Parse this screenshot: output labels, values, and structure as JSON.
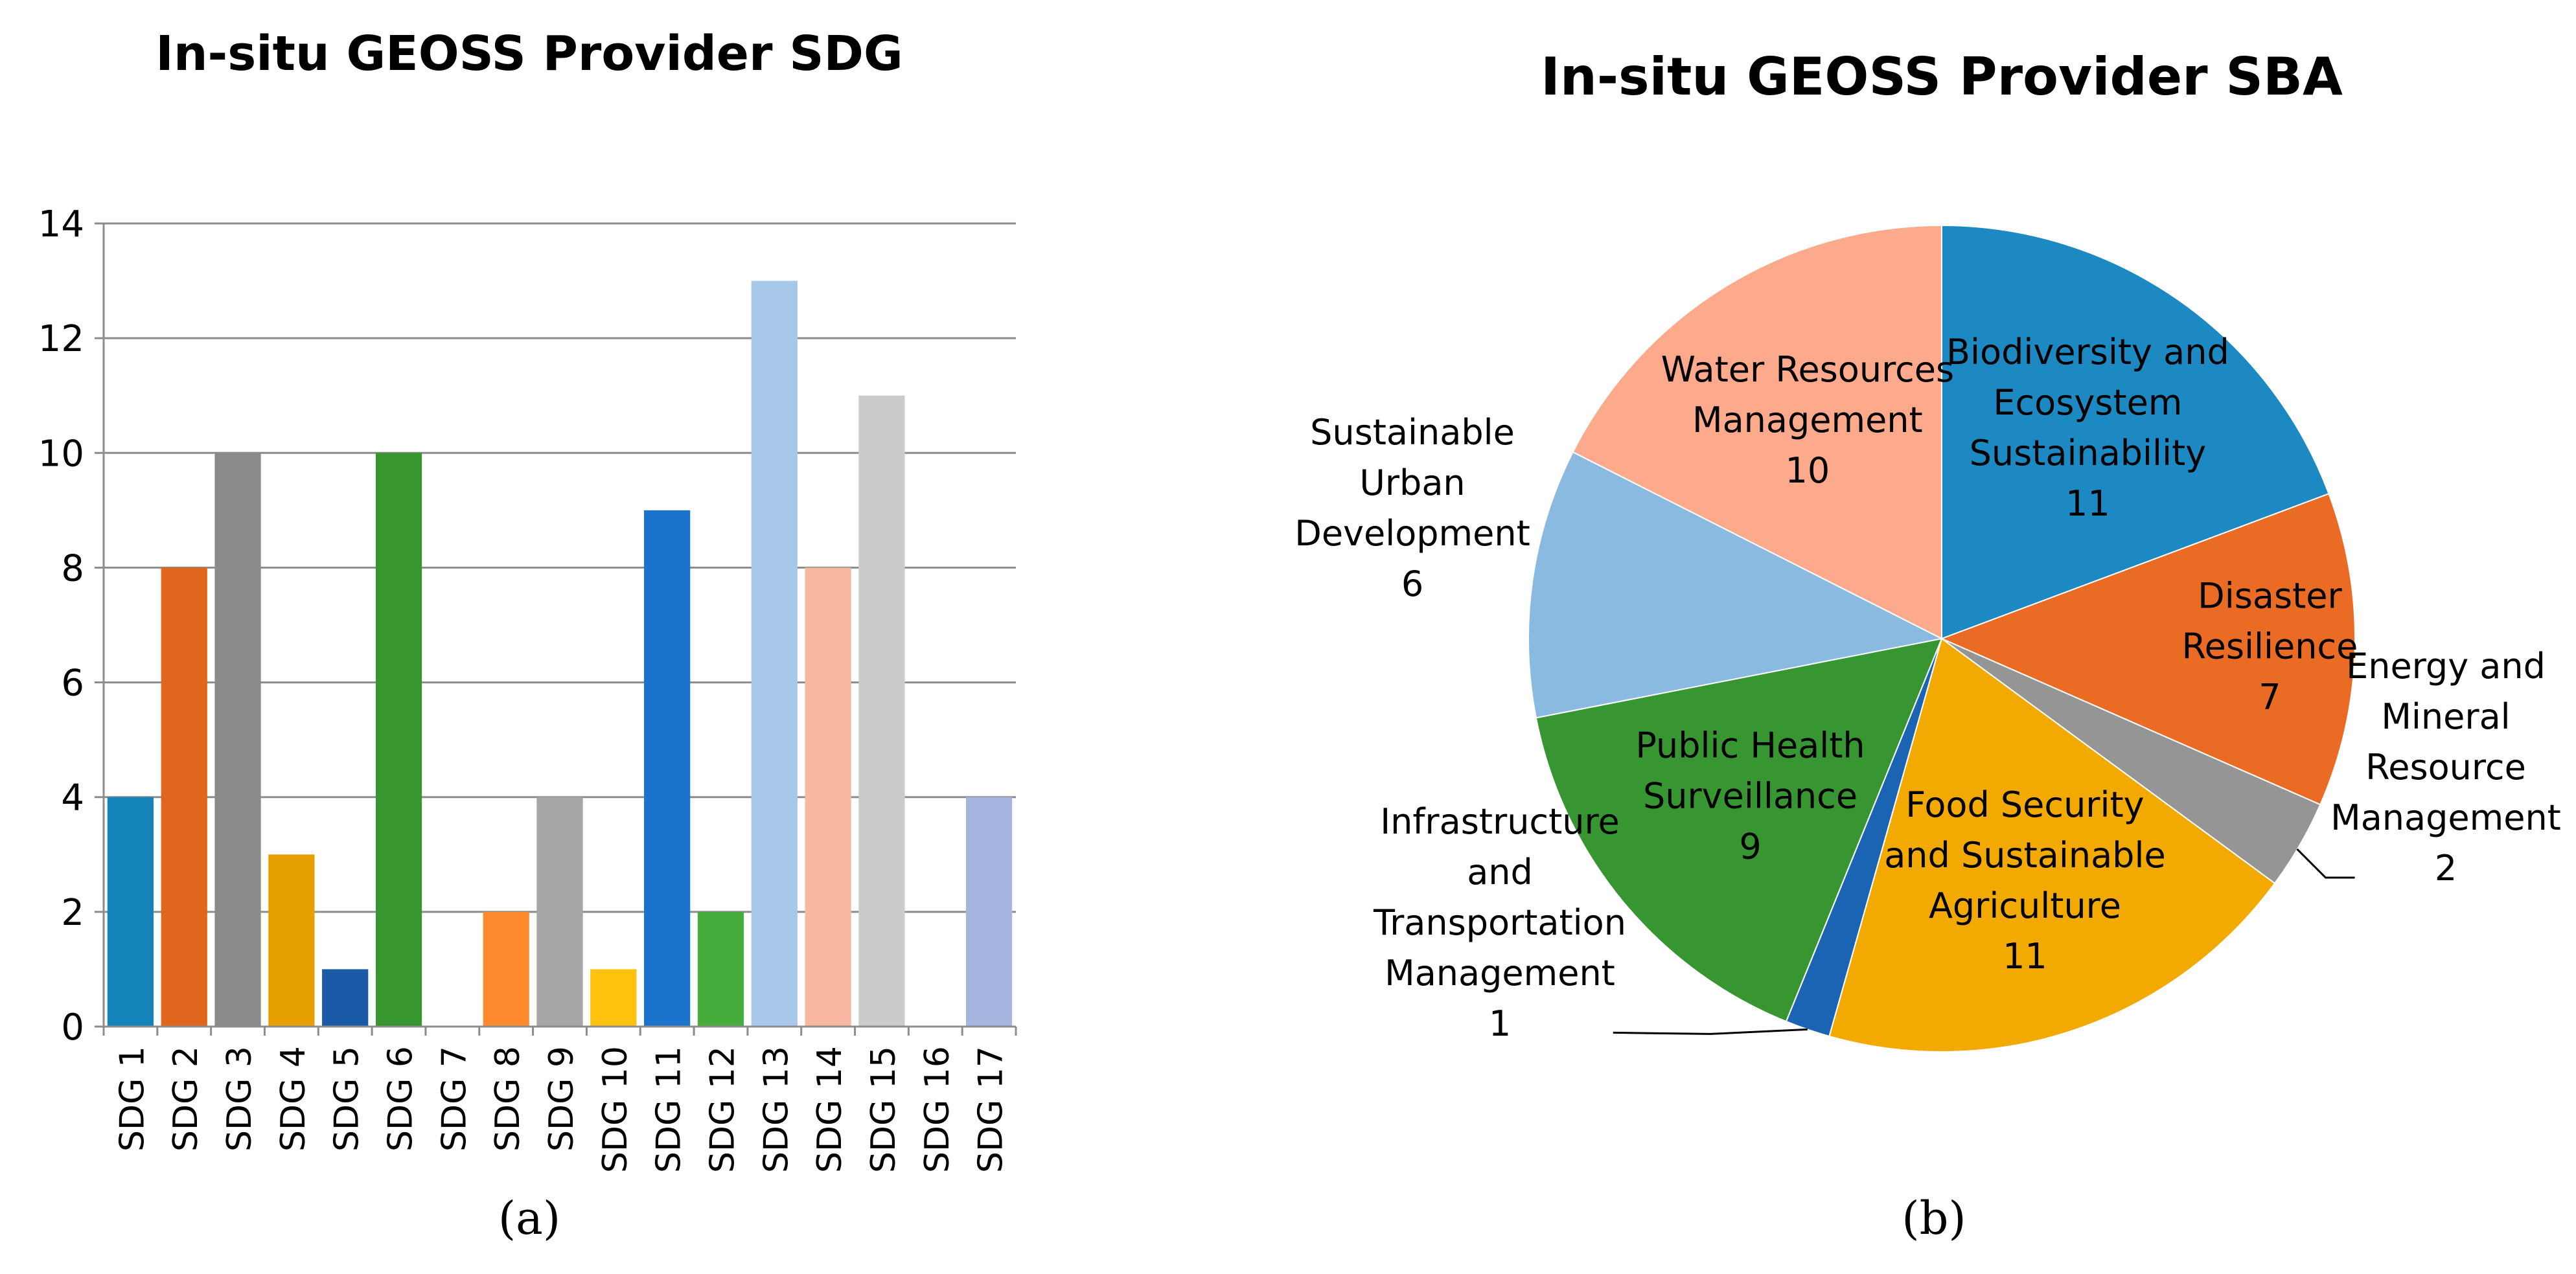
{
  "chart_data": [
    {
      "type": "bar",
      "title": "In-situ GEOSS Provider SDG",
      "panel_label": "(a)",
      "xlabel": "",
      "ylabel": "",
      "ylim": [
        0,
        14
      ],
      "yticks": [
        0,
        2,
        4,
        6,
        8,
        10,
        12,
        14
      ],
      "grid": true,
      "categories": [
        "SDG 1",
        "SDG 2",
        "SDG 3",
        "SDG 4",
        "SDG 5",
        "SDG 6",
        "SDG 7",
        "SDG 8",
        "SDG 9",
        "SDG 10",
        "SDG 11",
        "SDG 12",
        "SDG 13",
        "SDG 14",
        "SDG 15",
        "SDG 16",
        "SDG 17"
      ],
      "values": [
        4,
        8,
        10,
        3,
        1,
        10,
        0,
        2,
        4,
        1,
        9,
        2,
        13,
        8,
        11,
        0,
        4
      ],
      "colors": [
        "#1383B9",
        "#E0661E",
        "#8A8A8A",
        "#E6A000",
        "#1B5AA6",
        "#37962F",
        "#FFFFFF",
        "#FF8A2E",
        "#A6A6A6",
        "#FFC20E",
        "#1C73CC",
        "#46AC3B",
        "#A7C8E8",
        "#F8B7A0",
        "#CBCBCB",
        "#FFFFFF",
        "#A4B6E0"
      ]
    },
    {
      "type": "pie",
      "title": "In-situ GEOSS Provider SBA",
      "panel_label": "(b)",
      "slices": [
        {
          "label": "Biodiversity and Ecosystem Sustainability",
          "lines": [
            "Biodiversity and",
            "Ecosystem",
            "Sustainability"
          ],
          "value": 11,
          "value_label": "11",
          "color": "#1C89C2"
        },
        {
          "label": "Disaster Resilience",
          "lines": [
            "Disaster",
            "Resilience"
          ],
          "value": 7,
          "value_label": "7",
          "color": "#EA6C24"
        },
        {
          "label": "Energy and Mineral Resource Management",
          "lines": [
            "Energy and",
            "Mineral",
            "Resource",
            "Management"
          ],
          "value": 2,
          "value_label": "2",
          "color": "#959595"
        },
        {
          "label": "Food Security and Sustainable Agriculture",
          "lines": [
            "Food Security",
            "and Sustainable",
            "Agriculture"
          ],
          "value": 11,
          "value_label": "11",
          "color": "#F2AA02"
        },
        {
          "label": "Infrastructure and Transportation Management",
          "lines": [
            "Infrastructure",
            "and",
            "Transportation",
            "Management"
          ],
          "value": 1,
          "value_label": "1",
          "color": "#1B64B4"
        },
        {
          "label": "Public Health Surveillance",
          "lines": [
            "Public Health",
            "Surveillance"
          ],
          "value": 9,
          "value_label": "9",
          "color": "#389632"
        },
        {
          "label": "Sustainable Urban Development",
          "lines": [
            "Sustainable",
            "Urban",
            "Development"
          ],
          "value": 6,
          "value_label": "6",
          "color": "#8BBAE1"
        },
        {
          "label": "Water Resources Management",
          "lines": [
            "Water Resources",
            "Management"
          ],
          "value": 10,
          "value_label": "10",
          "color": "#FDA98B"
        }
      ]
    }
  ]
}
